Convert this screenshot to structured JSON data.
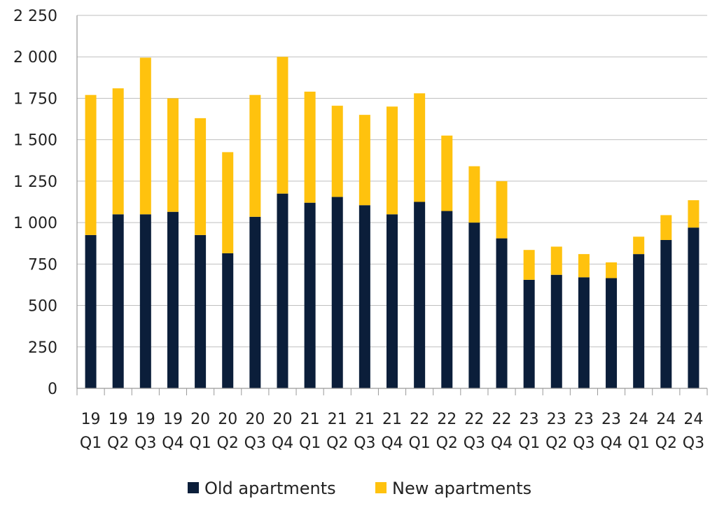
{
  "chart_data": {
    "type": "bar",
    "stacked": true,
    "categories": [
      "19 Q1",
      "19 Q2",
      "19 Q3",
      "19 Q4",
      "20 Q1",
      "20 Q2",
      "20 Q3",
      "20 Q4",
      "21 Q1",
      "21 Q2",
      "21 Q3",
      "21 Q4",
      "22 Q1",
      "22 Q2",
      "22 Q3",
      "22 Q4",
      "23 Q1",
      "23 Q2",
      "23 Q3",
      "23 Q4",
      "24 Q1",
      "24 Q2",
      "24 Q3"
    ],
    "category_lines": [
      [
        "19",
        "Q1"
      ],
      [
        "19",
        "Q2"
      ],
      [
        "19",
        "Q3"
      ],
      [
        "19",
        "Q4"
      ],
      [
        "20",
        "Q1"
      ],
      [
        "20",
        "Q2"
      ],
      [
        "20",
        "Q3"
      ],
      [
        "20",
        "Q4"
      ],
      [
        "21",
        "Q1"
      ],
      [
        "21",
        "Q2"
      ],
      [
        "21",
        "Q3"
      ],
      [
        "21",
        "Q4"
      ],
      [
        "22",
        "Q1"
      ],
      [
        "22",
        "Q2"
      ],
      [
        "22",
        "Q3"
      ],
      [
        "22",
        "Q4"
      ],
      [
        "23",
        "Q1"
      ],
      [
        "23",
        "Q2"
      ],
      [
        "23",
        "Q3"
      ],
      [
        "23",
        "Q4"
      ],
      [
        "24",
        "Q1"
      ],
      [
        "24",
        "Q2"
      ],
      [
        "24",
        "Q3"
      ]
    ],
    "series": [
      {
        "name": "Old apartments",
        "color": "#0b1e3a",
        "values": [
          925,
          1050,
          1050,
          1065,
          925,
          815,
          1035,
          1175,
          1120,
          1155,
          1105,
          1050,
          1125,
          1070,
          1000,
          905,
          655,
          685,
          670,
          665,
          810,
          895,
          970
        ]
      },
      {
        "name": "New apartments",
        "color": "#ffc20e",
        "values": [
          845,
          760,
          945,
          685,
          705,
          610,
          735,
          825,
          670,
          550,
          545,
          650,
          655,
          455,
          340,
          345,
          180,
          170,
          140,
          95,
          105,
          150,
          165
        ]
      }
    ],
    "title": "",
    "xlabel": "",
    "ylabel": "",
    "ylim": [
      0,
      2250
    ],
    "yticks": [
      0,
      250,
      500,
      750,
      1000,
      1250,
      1500,
      1750,
      2000,
      2250
    ],
    "ytick_labels": [
      "0",
      "250",
      "500",
      "750",
      "1 000",
      "1 250",
      "1 500",
      "1 750",
      "2 000",
      "2 250"
    ],
    "grid": "horizontal",
    "legend_position": "bottom"
  }
}
